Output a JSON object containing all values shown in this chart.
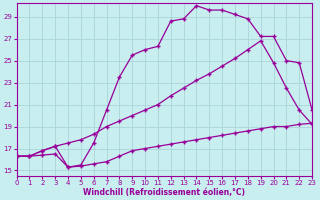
{
  "xlabel": "Windchill (Refroidissement éolien,°C)",
  "bg_color": "#c8eef0",
  "grid_color": "#aad4d8",
  "line_color": "#990099",
  "xlim": [
    0,
    23
  ],
  "ylim": [
    14.5,
    30.2
  ],
  "xticks": [
    0,
    1,
    2,
    3,
    4,
    5,
    6,
    7,
    8,
    9,
    10,
    11,
    12,
    13,
    14,
    15,
    16,
    17,
    18,
    19,
    20,
    21,
    22,
    23
  ],
  "yticks": [
    15,
    17,
    19,
    21,
    23,
    25,
    27,
    29
  ],
  "line1_x": [
    0,
    1,
    2,
    3,
    4,
    5,
    6,
    7,
    8,
    9,
    10,
    11,
    12,
    13,
    14,
    15,
    16,
    17,
    18,
    19,
    20,
    21,
    22,
    23
  ],
  "line1_y": [
    16.3,
    16.3,
    16.8,
    17.2,
    15.3,
    15.5,
    17.5,
    20.5,
    23.5,
    25.5,
    26.0,
    26.3,
    28.6,
    28.8,
    30.0,
    29.6,
    29.6,
    29.2,
    28.8,
    27.2,
    27.2,
    25.0,
    24.8,
    20.5
  ],
  "line2_x": [
    0,
    1,
    2,
    3,
    4,
    5,
    6,
    7,
    8,
    9,
    10,
    11,
    12,
    13,
    14,
    15,
    16,
    17,
    18,
    19,
    20,
    21,
    22,
    23
  ],
  "line2_y": [
    16.3,
    16.3,
    16.8,
    17.2,
    17.5,
    17.8,
    18.3,
    19.0,
    19.5,
    20.0,
    20.5,
    21.0,
    21.8,
    22.5,
    23.2,
    23.8,
    24.5,
    25.2,
    26.0,
    26.8,
    24.8,
    22.5,
    20.5,
    19.2
  ],
  "line3_x": [
    0,
    1,
    2,
    3,
    4,
    5,
    6,
    7,
    8,
    9,
    10,
    11,
    12,
    13,
    14,
    15,
    16,
    17,
    18,
    19,
    20,
    21,
    22,
    23
  ],
  "line3_y": [
    16.3,
    16.3,
    16.4,
    16.5,
    15.3,
    15.4,
    15.6,
    15.8,
    16.3,
    16.8,
    17.0,
    17.2,
    17.4,
    17.6,
    17.8,
    18.0,
    18.2,
    18.4,
    18.6,
    18.8,
    19.0,
    19.0,
    19.2,
    19.3
  ],
  "markersize": 2.5,
  "linewidth": 0.9,
  "xlabel_fontsize": 5.5,
  "tick_fontsize": 5.0
}
